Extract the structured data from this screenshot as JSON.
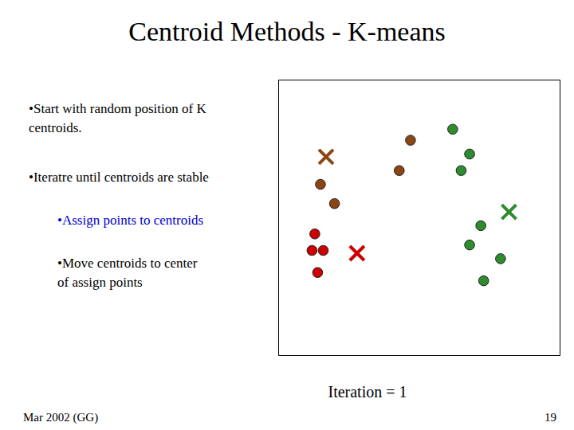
{
  "chart_data": {
    "type": "scatter",
    "title": "Centroid Methods - K-means",
    "xlim": [
      0,
      1
    ],
    "ylim": [
      0,
      1
    ],
    "tick_labels": false,
    "grid": false,
    "series": [
      {
        "color": "#cc0000",
        "marker": "circle",
        "x": [
          0.12,
          0.16,
          0.14,
          0.13
        ],
        "values": [
          0.38,
          0.38,
          0.3,
          0.44
        ]
      },
      {
        "color": "#cc0000",
        "marker": "x",
        "x": [
          0.28
        ],
        "values": [
          0.37
        ]
      },
      {
        "color": "#8B4513",
        "marker": "circle",
        "x": [
          0.15,
          0.2,
          0.47,
          0.43
        ],
        "values": [
          0.62,
          0.55,
          0.78,
          0.67
        ]
      },
      {
        "color": "#8B4513",
        "marker": "x",
        "x": [
          0.17
        ],
        "values": [
          0.72
        ]
      },
      {
        "color": "#2e8b2e",
        "marker": "circle",
        "x": [
          0.62,
          0.68,
          0.65,
          0.72,
          0.68,
          0.79,
          0.73
        ],
        "values": [
          0.82,
          0.73,
          0.67,
          0.47,
          0.4,
          0.35,
          0.27
        ]
      },
      {
        "color": "#2e8b2e",
        "marker": "x",
        "x": [
          0.82
        ],
        "values": [
          0.52
        ]
      }
    ],
    "annotations": [
      {
        "text": "•Start with random position of K\ncentroids.",
        "color": "#000000"
      },
      {
        "text": "•Iteratre until centroids are stable",
        "color": "#000000"
      },
      {
        "text": "•Assign points to centroids",
        "color": "#0000cc"
      },
      {
        "text": "•Move centroids to center\nof assign points",
        "color": "#000000"
      },
      {
        "text": "Iteration = 1",
        "color": "#000000"
      },
      {
        "text": "Mar 2002 (GG)",
        "color": "#000000"
      },
      {
        "text": "19",
        "color": "#000000"
      }
    ]
  }
}
